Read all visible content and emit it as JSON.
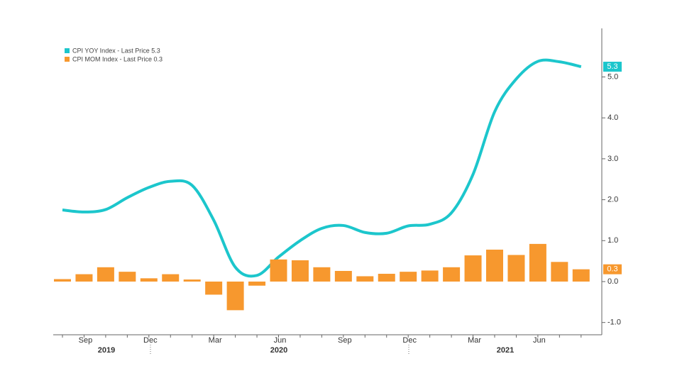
{
  "chart_data": {
    "type": "bar_line",
    "categories": [
      null,
      "Sep",
      null,
      null,
      "Dec",
      null,
      null,
      "Mar",
      null,
      null,
      "Jun",
      null,
      null,
      "Sep",
      null,
      null,
      "Dec",
      null,
      null,
      "Mar",
      null,
      null,
      "Jun",
      null,
      null
    ],
    "years": [
      "2019",
      "2020",
      "2021"
    ],
    "series": [
      {
        "name": "CPI YOY Index - Last Price 5.3",
        "type": "line",
        "color": "#1cc6cc",
        "values": [
          1.75,
          1.7,
          1.76,
          2.05,
          2.3,
          2.45,
          2.35,
          1.5,
          0.35,
          0.15,
          0.6,
          1.0,
          1.3,
          1.37,
          1.2,
          1.18,
          1.36,
          1.4,
          1.68,
          2.62,
          4.15,
          4.95,
          5.38,
          5.37,
          5.25
        ]
      },
      {
        "name": "CPI MOM Index - Last Price 0.3",
        "type": "bar",
        "color": "#f7982e",
        "values": [
          0.06,
          0.18,
          0.35,
          0.24,
          0.08,
          0.18,
          0.05,
          -0.32,
          -0.7,
          -0.1,
          0.54,
          0.52,
          0.35,
          0.26,
          0.13,
          0.19,
          0.24,
          0.27,
          0.35,
          0.64,
          0.78,
          0.65,
          0.92,
          0.48,
          0.3
        ]
      }
    ],
    "ylim": [
      -1.3,
      6.1
    ],
    "yticks": [
      {
        "value": -1,
        "label": "-1.0"
      },
      {
        "value": 0,
        "label": "0.0"
      },
      {
        "value": 1,
        "label": "1.0"
      },
      {
        "value": 2,
        "label": "2.0"
      },
      {
        "value": 3,
        "label": "3.0"
      },
      {
        "value": 4,
        "label": "4.0"
      },
      {
        "value": 5,
        "label": "5.0"
      }
    ],
    "last_price_labels": [
      "5.3",
      "0.3"
    ]
  }
}
